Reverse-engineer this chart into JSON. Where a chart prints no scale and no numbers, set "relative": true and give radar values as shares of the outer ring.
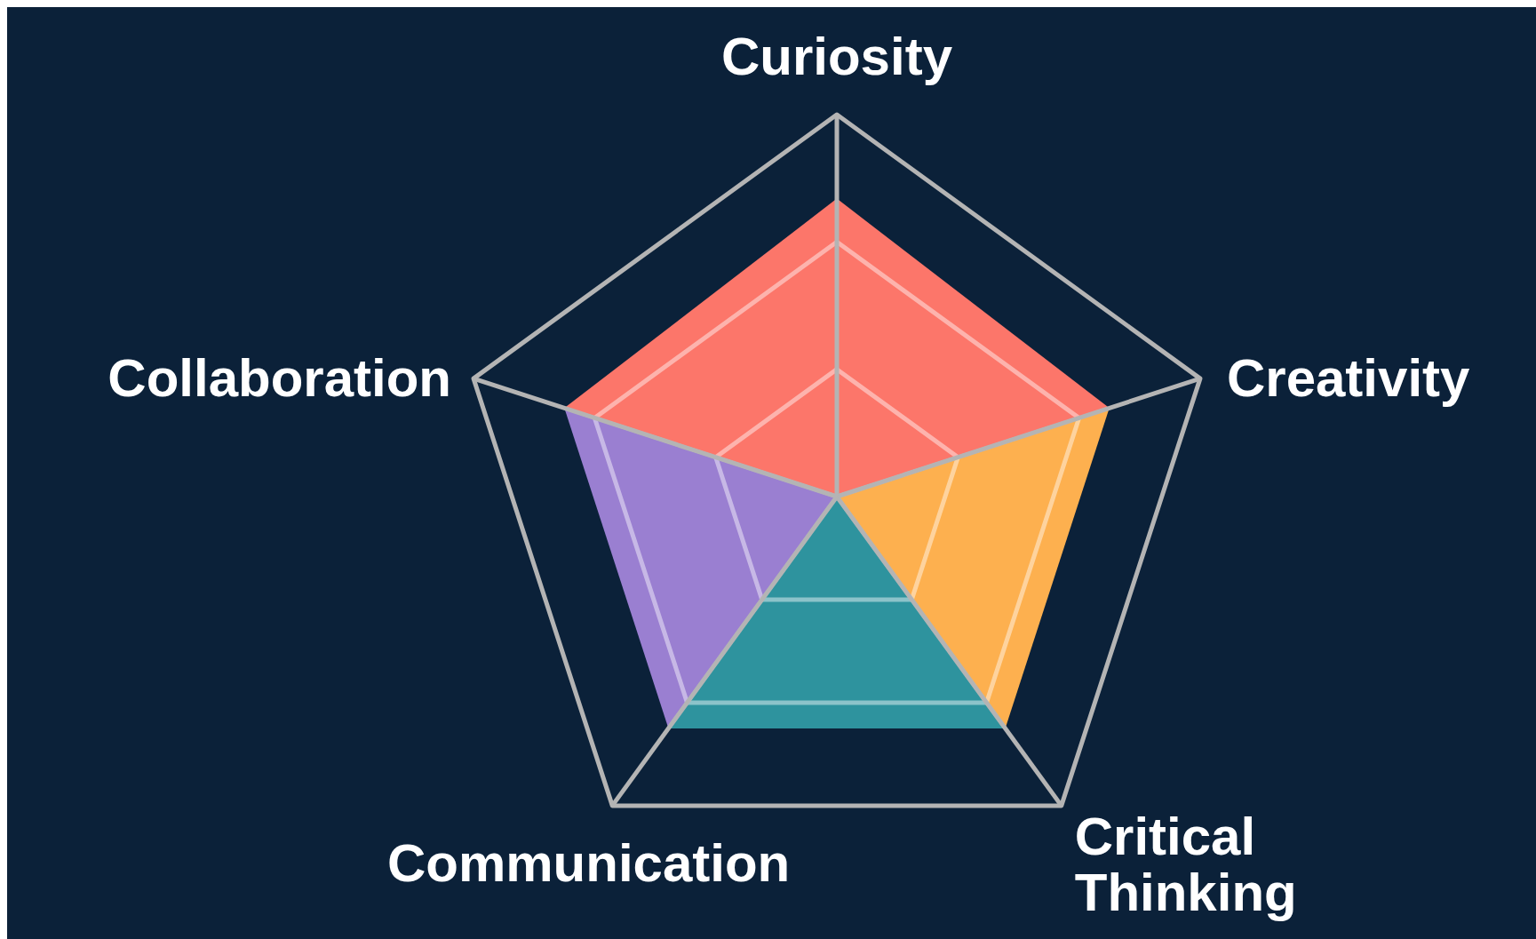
{
  "chart_data": {
    "type": "radar",
    "relative": true,
    "grid": true,
    "categories": [
      "Curiosity",
      "Creativity",
      "Critical Thinking",
      "Communication",
      "Collaboration"
    ],
    "series": [
      {
        "colors": [
          "#fc766a",
          "#fdb04f",
          "#2e939e",
          "#9a7fd1",
          "#fc766a"
        ],
        "values": [
          0.78,
          0.75,
          0.75,
          0.75,
          0.75
        ]
      }
    ]
  }
}
